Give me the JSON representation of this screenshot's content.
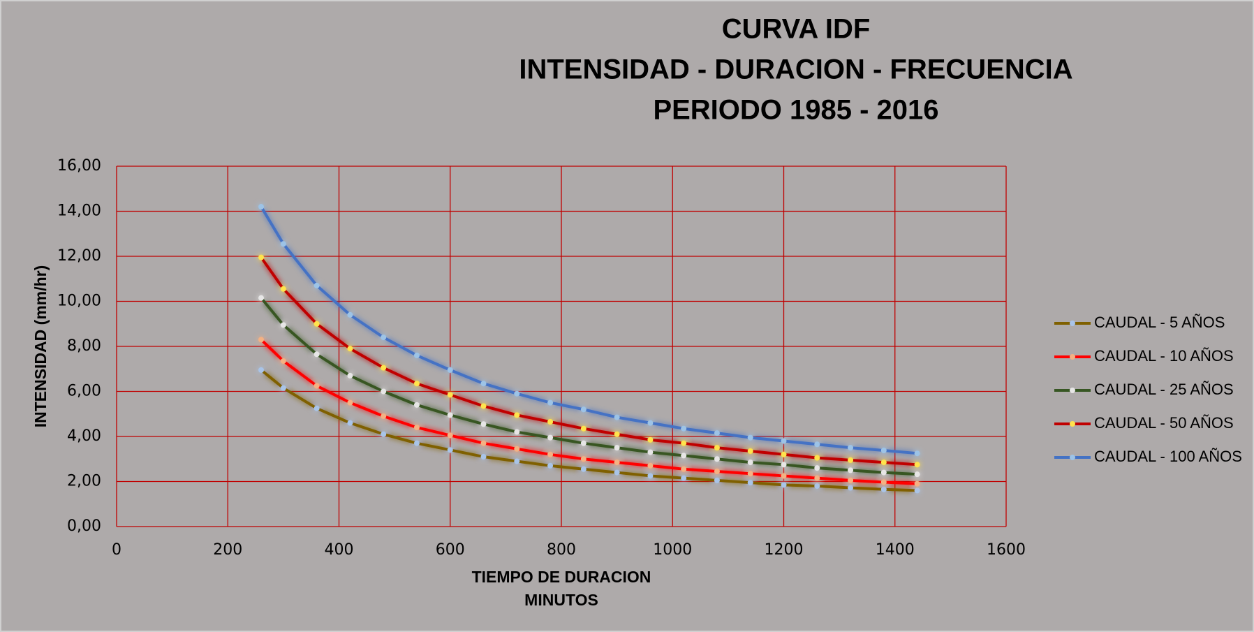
{
  "chart_data": {
    "type": "line",
    "title": [
      "CURVA IDF",
      "INTENSIDAD - DURACION - FRECUENCIA",
      "PERIODO 1985 - 2016"
    ],
    "xlabel": [
      "TIEMPO DE DURACION",
      "MINUTOS"
    ],
    "ylabel": "INTENSIDAD (mm/hr)",
    "x": [
      260,
      300,
      360,
      420,
      480,
      540,
      600,
      660,
      720,
      780,
      840,
      900,
      960,
      1020,
      1080,
      1140,
      1200,
      1260,
      1320,
      1380,
      1440
    ],
    "series": [
      {
        "name": "CAUDAL - 5 AÑOS",
        "color": "#7f6000",
        "marker_color": "#a9c4e8",
        "values": [
          6.95,
          6.15,
          5.25,
          4.6,
          4.1,
          3.7,
          3.4,
          3.1,
          2.9,
          2.7,
          2.55,
          2.4,
          2.25,
          2.15,
          2.05,
          1.95,
          1.85,
          1.8,
          1.72,
          1.65,
          1.6
        ]
      },
      {
        "name": "CAUDAL - 10 AÑOS",
        "color": "#ff0000",
        "marker_color": "#f4b183",
        "values": [
          8.3,
          7.35,
          6.25,
          5.5,
          4.9,
          4.4,
          4.05,
          3.7,
          3.45,
          3.2,
          3.0,
          2.85,
          2.7,
          2.55,
          2.45,
          2.35,
          2.25,
          2.15,
          2.05,
          1.97,
          1.9
        ]
      },
      {
        "name": "CAUDAL - 25 AÑOS",
        "color": "#375623",
        "marker_color": "#e7e6e6",
        "values": [
          10.15,
          8.95,
          7.65,
          6.7,
          6.0,
          5.4,
          4.95,
          4.55,
          4.2,
          3.95,
          3.7,
          3.5,
          3.3,
          3.15,
          3.0,
          2.85,
          2.75,
          2.6,
          2.5,
          2.4,
          2.32
        ]
      },
      {
        "name": "CAUDAL - 50 AÑOS",
        "color": "#c00000",
        "marker_color": "#ffe34d",
        "values": [
          11.95,
          10.55,
          9.0,
          7.9,
          7.05,
          6.35,
          5.85,
          5.35,
          4.95,
          4.65,
          4.35,
          4.1,
          3.85,
          3.7,
          3.5,
          3.35,
          3.2,
          3.05,
          2.95,
          2.85,
          2.75
        ]
      },
      {
        "name": "CAUDAL - 100 AÑOS",
        "color": "#4472c4",
        "marker_color": "#9dc3e6",
        "values": [
          14.2,
          12.55,
          10.7,
          9.4,
          8.4,
          7.6,
          6.95,
          6.35,
          5.9,
          5.5,
          5.2,
          4.85,
          4.6,
          4.35,
          4.15,
          3.95,
          3.8,
          3.65,
          3.5,
          3.38,
          3.25
        ]
      }
    ],
    "xlim": [
      0,
      1600
    ],
    "xticks": [
      0,
      200,
      400,
      600,
      800,
      1000,
      1200,
      1400,
      1600
    ],
    "ylim": [
      0,
      16
    ],
    "yticks": [
      {
        "value": 0,
        "label": "0,00"
      },
      {
        "value": 2,
        "label": "2,00"
      },
      {
        "value": 4,
        "label": "4,00"
      },
      {
        "value": 6,
        "label": "6,00"
      },
      {
        "value": 8,
        "label": "8,00"
      },
      {
        "value": 10,
        "label": "10,00"
      },
      {
        "value": 12,
        "label": "12,00"
      },
      {
        "value": 14,
        "label": "14,00"
      },
      {
        "value": 16,
        "label": "16,00"
      }
    ],
    "grid": true,
    "grid_color": "#c00000",
    "legend": "right"
  }
}
